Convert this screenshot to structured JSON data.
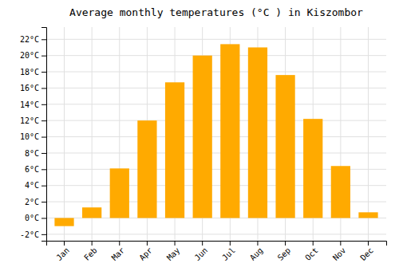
{
  "chart_data": {
    "type": "bar",
    "title": "Average monthly temperatures (°C ) in Kiszombor",
    "categories": [
      "Jan",
      "Feb",
      "Mar",
      "Apr",
      "May",
      "Jun",
      "Jul",
      "Aug",
      "Sep",
      "Oct",
      "Nov",
      "Dec"
    ],
    "values": [
      -1.0,
      1.3,
      6.1,
      12.0,
      16.7,
      20.0,
      21.4,
      21.0,
      17.6,
      12.2,
      6.4,
      0.7
    ],
    "color": "#FFAA00",
    "ylim": [
      -2.8,
      23.5
    ],
    "yticks": [
      {
        "value": -2,
        "label": "-2°C"
      },
      {
        "value": 0,
        "label": "0°C"
      },
      {
        "value": 2,
        "label": "2°C"
      },
      {
        "value": 4,
        "label": "4°C"
      },
      {
        "value": 6,
        "label": "6°C"
      },
      {
        "value": 8,
        "label": "8°C"
      },
      {
        "value": 10,
        "label": "10°C"
      },
      {
        "value": 12,
        "label": "12°C"
      },
      {
        "value": 14,
        "label": "14°C"
      },
      {
        "value": 16,
        "label": "16°C"
      },
      {
        "value": 18,
        "label": "18°C"
      },
      {
        "value": 20,
        "label": "20°C"
      },
      {
        "value": 22,
        "label": "22°C"
      }
    ],
    "grid": true
  }
}
